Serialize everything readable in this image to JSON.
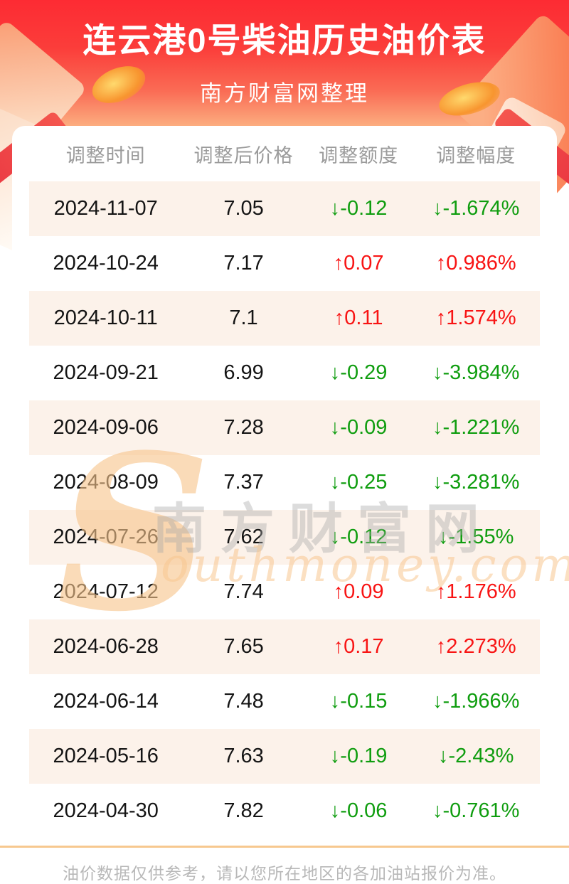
{
  "page": {
    "title": "连云港0号柴油历史油价表",
    "subtitle": "南方财富网整理",
    "footer_note": "油价数据仅供参考，请以您所在地区的各加油站报价为准。"
  },
  "watermark": {
    "initial": "S",
    "cn": "南方财富网",
    "en": "outhmoney.com"
  },
  "colors": {
    "up": "#f81414",
    "down": "#0f9d0f",
    "brand_red_top": "#fd2b33",
    "brand_red_bottom": "#fcae80",
    "stripe_row": "#fcf2ea",
    "footer_line": "#f7c88f"
  },
  "table": {
    "columns": [
      "调整时间",
      "调整后价格",
      "调整额度",
      "调整幅度"
    ],
    "rows": [
      {
        "date": "2024-11-07",
        "price": "7.05",
        "change": "↓-0.12",
        "pct": "↓-1.674%",
        "dir": "down"
      },
      {
        "date": "2024-10-24",
        "price": "7.17",
        "change": "↑0.07",
        "pct": "↑0.986%",
        "dir": "up"
      },
      {
        "date": "2024-10-11",
        "price": "7.1",
        "change": "↑0.11",
        "pct": "↑1.574%",
        "dir": "up"
      },
      {
        "date": "2024-09-21",
        "price": "6.99",
        "change": "↓-0.29",
        "pct": "↓-3.984%",
        "dir": "down"
      },
      {
        "date": "2024-09-06",
        "price": "7.28",
        "change": "↓-0.09",
        "pct": "↓-1.221%",
        "dir": "down"
      },
      {
        "date": "2024-08-09",
        "price": "7.37",
        "change": "↓-0.25",
        "pct": "↓-3.281%",
        "dir": "down"
      },
      {
        "date": "2024-07-26",
        "price": "7.62",
        "change": "↓-0.12",
        "pct": "↓-1.55%",
        "dir": "down"
      },
      {
        "date": "2024-07-12",
        "price": "7.74",
        "change": "↑0.09",
        "pct": "↑1.176%",
        "dir": "up"
      },
      {
        "date": "2024-06-28",
        "price": "7.65",
        "change": "↑0.17",
        "pct": "↑2.273%",
        "dir": "up"
      },
      {
        "date": "2024-06-14",
        "price": "7.48",
        "change": "↓-0.15",
        "pct": "↓-1.966%",
        "dir": "down"
      },
      {
        "date": "2024-05-16",
        "price": "7.63",
        "change": "↓-0.19",
        "pct": "↓-2.43%",
        "dir": "down"
      },
      {
        "date": "2024-04-30",
        "price": "7.82",
        "change": "↓-0.06",
        "pct": "↓-0.761%",
        "dir": "down"
      }
    ]
  },
  "chart_data": {
    "type": "table",
    "title": "连云港0号柴油历史油价表",
    "columns": [
      "调整时间",
      "调整后价格",
      "调整额度",
      "调整幅度"
    ],
    "x": [
      "2024-11-07",
      "2024-10-24",
      "2024-10-11",
      "2024-09-21",
      "2024-09-06",
      "2024-08-09",
      "2024-07-26",
      "2024-07-12",
      "2024-06-28",
      "2024-06-14",
      "2024-05-16",
      "2024-04-30"
    ],
    "series": [
      {
        "name": "调整后价格",
        "values": [
          7.05,
          7.17,
          7.1,
          6.99,
          7.28,
          7.37,
          7.62,
          7.74,
          7.65,
          7.48,
          7.63,
          7.82
        ]
      },
      {
        "name": "调整额度",
        "values": [
          -0.12,
          0.07,
          0.11,
          -0.29,
          -0.09,
          -0.25,
          -0.12,
          0.09,
          0.17,
          -0.15,
          -0.19,
          -0.06
        ]
      },
      {
        "name": "调整幅度(%)",
        "values": [
          -1.674,
          0.986,
          1.574,
          -3.984,
          -1.221,
          -3.281,
          -1.55,
          1.176,
          2.273,
          -1.966,
          -2.43,
          -0.761
        ]
      }
    ]
  }
}
